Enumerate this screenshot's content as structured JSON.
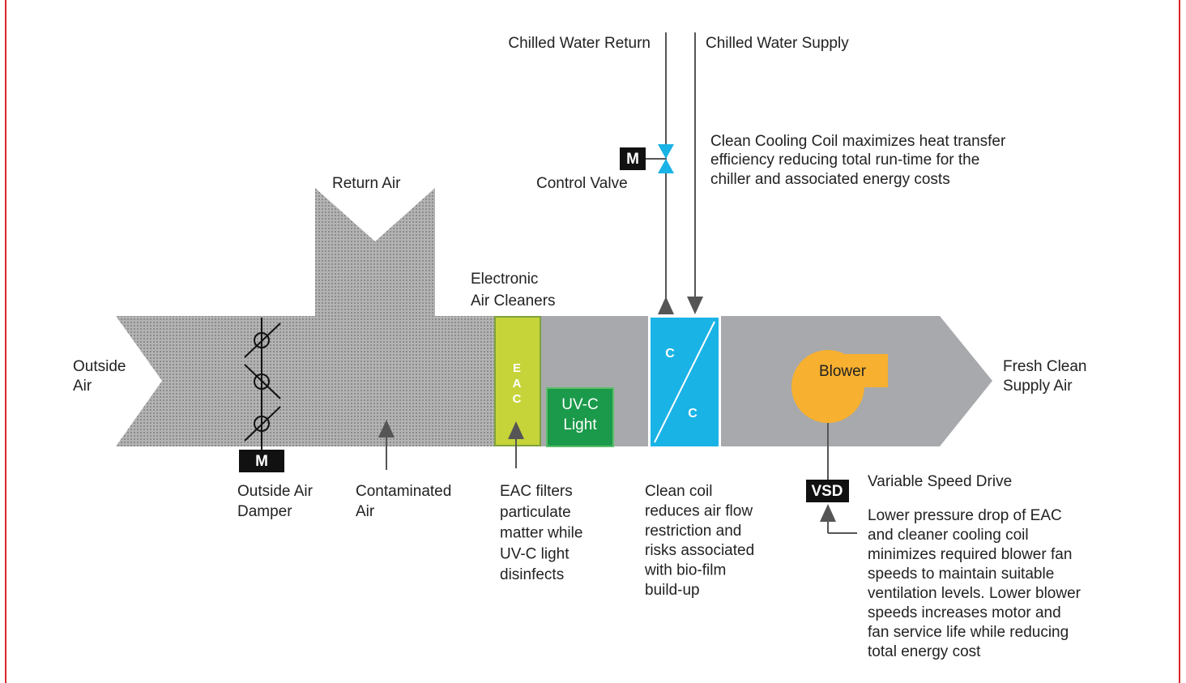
{
  "pipes": {
    "return": "Chilled Water Return",
    "supply": "Chilled Water Supply"
  },
  "coil_note": [
    "Clean Cooling Coil maximizes heat transfer",
    "efficiency reducing total run-time for the",
    "chiller and associated energy costs"
  ],
  "valve": {
    "motor": "M",
    "label": "Control Valve"
  },
  "return_air": "Return Air",
  "eac_title": [
    "Electronic",
    "Air Cleaners"
  ],
  "outside_air": [
    "Outside",
    "Air"
  ],
  "supply_air": [
    "Fresh Clean",
    "Supply Air"
  ],
  "eac_box": [
    "E",
    "A",
    "C"
  ],
  "uvc_box": [
    "UV-C",
    "Light"
  ],
  "coil_box": [
    "C",
    "C"
  ],
  "blower": "Blower",
  "damper": {
    "motor": "M",
    "label": [
      "Outside Air",
      "Damper"
    ]
  },
  "contaminated": [
    "Contaminated",
    "Air"
  ],
  "eac_note": [
    "EAC filters",
    "particulate",
    "matter while",
    "UV-C light",
    "disinfects"
  ],
  "coil_clean_note": [
    "Clean coil",
    "reduces air flow",
    "restriction and",
    "risks associated",
    "with bio-film",
    "build-up"
  ],
  "vsd": {
    "box": "VSD",
    "label": "Variable Speed Drive"
  },
  "vsd_note": [
    "Lower pressure drop of EAC",
    "and cleaner cooling coil",
    "minimizes required blower fan",
    "speeds to maintain suitable",
    "ventilation levels. Lower blower",
    "speeds increases motor and",
    "fan service life while reducing",
    "total energy cost"
  ]
}
